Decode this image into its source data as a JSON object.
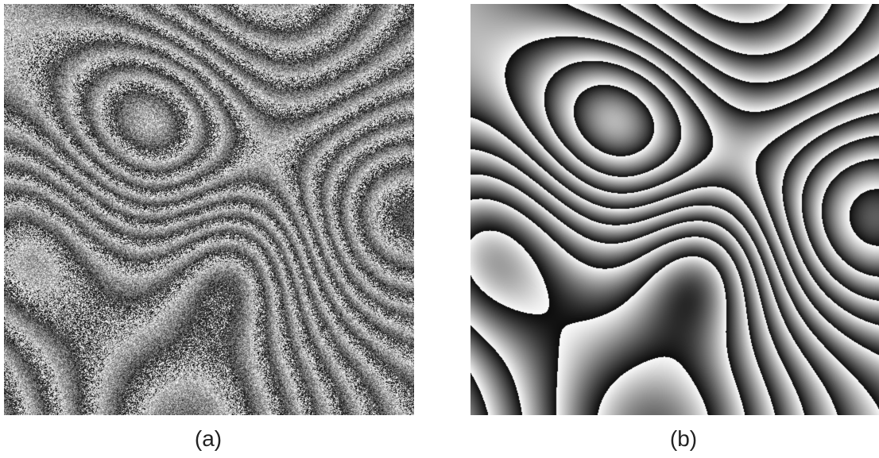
{
  "panels": [
    {
      "id": "a",
      "label": "(a)",
      "kind": "noisy-wrapped-phase-fringes"
    },
    {
      "id": "b",
      "label": "(b)",
      "kind": "filtered-wrapped-phase-fringes"
    }
  ],
  "colors": {
    "background": "#ffffff",
    "caption_text": "#222222"
  }
}
